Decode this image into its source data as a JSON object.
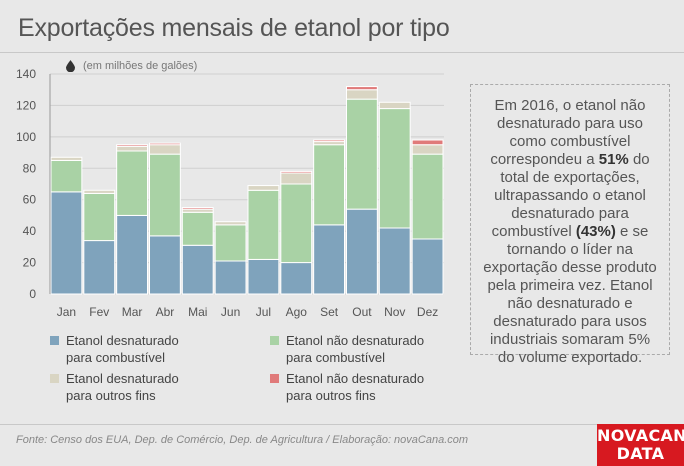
{
  "title": "Exportações mensais de etanol por tipo",
  "unit_label": "(em milhões de galões)",
  "note": {
    "p1": "Em 2016, o etanol não desnaturado para uso como combustível correspondeu a ",
    "b1": "51%",
    "p2": " do total de exportações, ultrapassando o etanol desnaturado para combustível ",
    "b2": "(43%)",
    "p3": " e se tornando o líder na exportação desse produto pela primeira vez. Etanol não desnaturado e desnaturado para usos industriais somaram 5% do volume exportado."
  },
  "source": "Fonte: Censo dos EUA, Dep. de Comércio, Dep. de Agricultura / Elaboração: novaCana.com",
  "logo": {
    "line1": "NOVACANA",
    "line2": "DATA"
  },
  "colors": {
    "desnat_comb": "#7fa3bc",
    "naodesnat_comb": "#a9d2a5",
    "desnat_outros": "#d9d5c3",
    "naodesnat_outros": "#e07a7a"
  },
  "legend": [
    {
      "l1": "Etanol desnaturado",
      "l2": "para combustível"
    },
    {
      "l1": "Etanol não desnaturado",
      "l2": "para combustível"
    },
    {
      "l1": "Etanol desnaturado",
      "l2": "para outros fins"
    },
    {
      "l1": "Etanol não desnaturado",
      "l2": "para outros fins"
    }
  ],
  "chart_data": {
    "type": "bar",
    "stacked": true,
    "categories": [
      "Jan",
      "Fev",
      "Mar",
      "Abr",
      "Mai",
      "Jun",
      "Jul",
      "Ago",
      "Set",
      "Out",
      "Nov",
      "Dez"
    ],
    "series": [
      {
        "name": "Etanol desnaturado para combustível",
        "values": [
          65,
          34,
          50,
          37,
          31,
          21,
          22,
          20,
          44,
          54,
          42,
          35
        ]
      },
      {
        "name": "Etanol não desnaturado para combustível",
        "values": [
          20,
          30,
          41,
          52,
          21,
          23,
          44,
          50,
          51,
          70,
          76,
          54
        ]
      },
      {
        "name": "Etanol desnaturado para outros fins",
        "values": [
          2,
          2,
          3,
          6,
          2,
          2,
          3,
          7,
          2,
          6,
          4,
          6
        ]
      },
      {
        "name": "Etanol não desnaturado para outros fins",
        "values": [
          0,
          0,
          1,
          1,
          1,
          0,
          0,
          1,
          1,
          2,
          0,
          3
        ]
      }
    ],
    "yticks": [
      0,
      20,
      40,
      60,
      80,
      100,
      120,
      140
    ],
    "ylim": [
      0,
      140
    ],
    "grid": true
  }
}
